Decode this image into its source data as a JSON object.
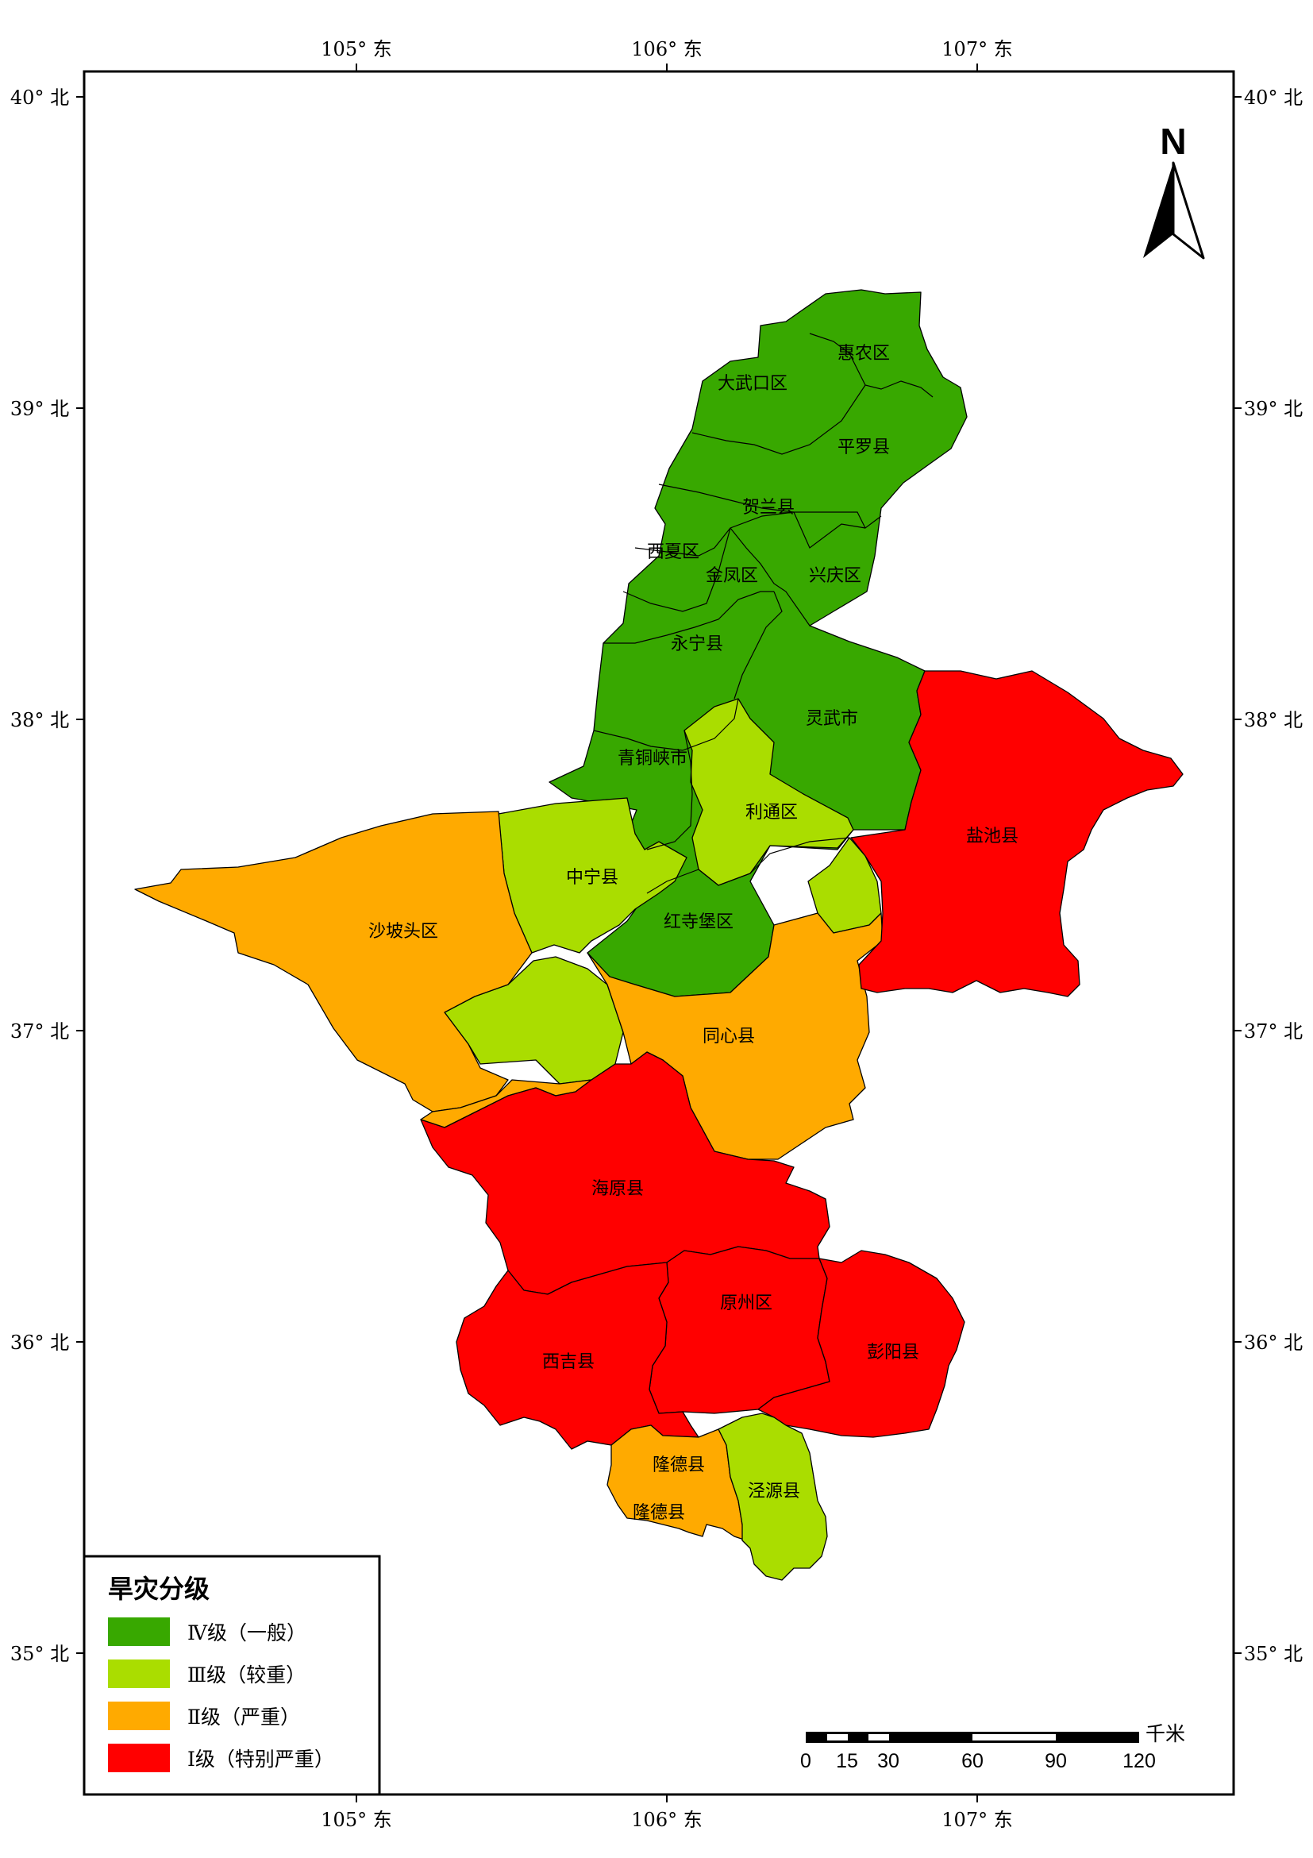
{
  "colors": {
    "level4": "#38a800",
    "level3": "#aadd00",
    "level2": "#ffaa00",
    "level1": "#ff0000"
  },
  "graticule": {
    "lon_labels": [
      "105° 东",
      "106° 东",
      "107° 东"
    ],
    "lat_labels": [
      "40° 北",
      "39° 北",
      "38° 北",
      "37° 北",
      "36° 北",
      "35° 北"
    ]
  },
  "north_arrow": {
    "label": "N",
    "icon": "north-arrow-icon"
  },
  "regions": [
    {
      "name": "惠农区",
      "level": 4
    },
    {
      "name": "大武口区",
      "level": 4
    },
    {
      "name": "平罗县",
      "level": 4
    },
    {
      "name": "贺兰县",
      "level": 4
    },
    {
      "name": "西夏区",
      "level": 4
    },
    {
      "name": "金凤区",
      "level": 4
    },
    {
      "name": "兴庆区",
      "level": 4
    },
    {
      "name": "永宁县",
      "level": 4
    },
    {
      "name": "灵武市",
      "level": 4
    },
    {
      "name": "青铜峡市",
      "level": 4
    },
    {
      "name": "利通区",
      "level": 3
    },
    {
      "name": "中宁县",
      "level": 3
    },
    {
      "name": "红寺堡区",
      "level": 4
    },
    {
      "name": "盐池县",
      "level": 1
    },
    {
      "name": "沙坡头区",
      "level": 2
    },
    {
      "name": "同心县",
      "level": 2
    },
    {
      "name": "海原县",
      "level": 1
    },
    {
      "name": "原州区",
      "level": 1
    },
    {
      "name": "西吉县",
      "level": 1
    },
    {
      "name": "彭阳县",
      "level": 1
    },
    {
      "name": "隆德县",
      "level": 2
    },
    {
      "name": "隆德县",
      "level": 2
    },
    {
      "name": "泾源县",
      "level": 3
    }
  ],
  "legend": {
    "title": "旱灾分级",
    "items": [
      {
        "label": "Ⅳ级（一般）",
        "color": "#38a800"
      },
      {
        "label": "Ⅲ级（较重）",
        "color": "#aadd00"
      },
      {
        "label": "Ⅱ级（严重）",
        "color": "#ffaa00"
      },
      {
        "label": "Ⅰ级（特别严重）",
        "color": "#ff0000"
      }
    ]
  },
  "scale_bar": {
    "unit": "千米",
    "labels": [
      "0",
      "15",
      "30",
      "60",
      "90",
      "120"
    ]
  }
}
